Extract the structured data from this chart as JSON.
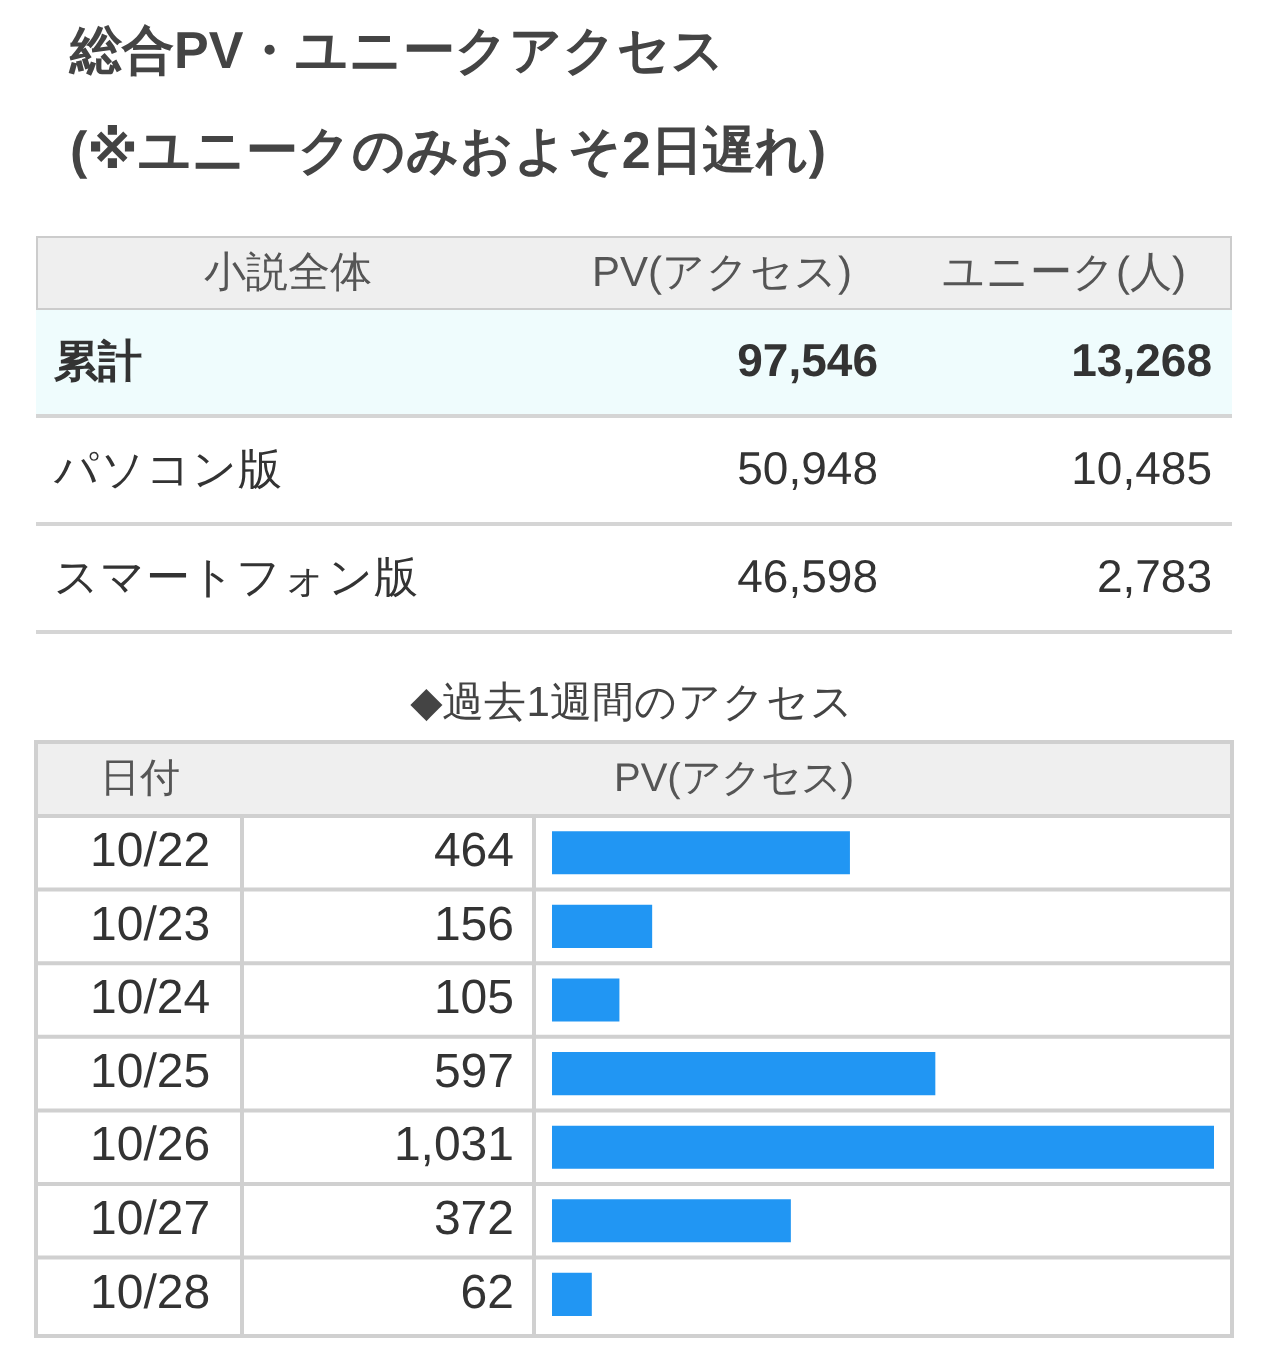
{
  "chart_data": [
    {
      "type": "other",
      "title": "総合PV・ユニークアクセス",
      "subtitle": "(※ユニークのみおよそ2日遅れ)",
      "annotations": [
        "小説全体",
        "PV(アクセス)",
        "ユニーク(人)",
        "累計",
        "97,546",
        "13,268",
        "パソコン版",
        "50,948",
        "10,485",
        "スマートフォン版",
        "46,598",
        "2,783"
      ]
    },
    {
      "type": "bar",
      "orientation": "horizontal",
      "title": "◆過去1週間のアクセス",
      "ylabel": "日付",
      "xlabel": "PV(アクセス)",
      "categories": [
        "10/22",
        "10/23",
        "10/24",
        "10/25",
        "10/26",
        "10/27",
        "10/28"
      ],
      "values": [
        464,
        156,
        105,
        597,
        1031,
        372,
        62
      ],
      "color": "#2196f3",
      "value_labels": [
        "464",
        "156",
        "105",
        "597",
        "1,031",
        "372",
        "62"
      ],
      "grid": "y",
      "tick_labels": "y"
    }
  ]
}
